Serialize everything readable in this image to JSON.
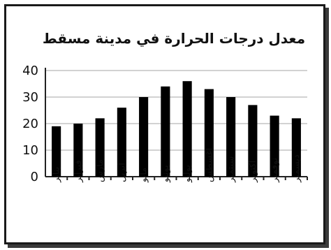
{
  "chart_data": {
    "type": "bar",
    "title": "معدل درجات الحرارة  في مدينة مسقط",
    "xlabel": "",
    "ylabel": "",
    "categories": [
      "يناير",
      "فبراير",
      "مارس",
      "ابريل",
      "مايو",
      "يونيو",
      "يوليو",
      "اغسطس",
      "سبتمبر",
      "اكتوبر",
      "نوفمبر",
      "ديسمبر"
    ],
    "values": [
      19,
      20,
      22,
      26,
      30,
      34,
      36,
      33,
      30,
      27,
      23,
      22
    ],
    "ylim": [
      0,
      40
    ],
    "yticks": [
      0,
      10,
      20,
      30,
      40
    ],
    "grid": true,
    "legend": "none",
    "bar_color": "#000000"
  }
}
